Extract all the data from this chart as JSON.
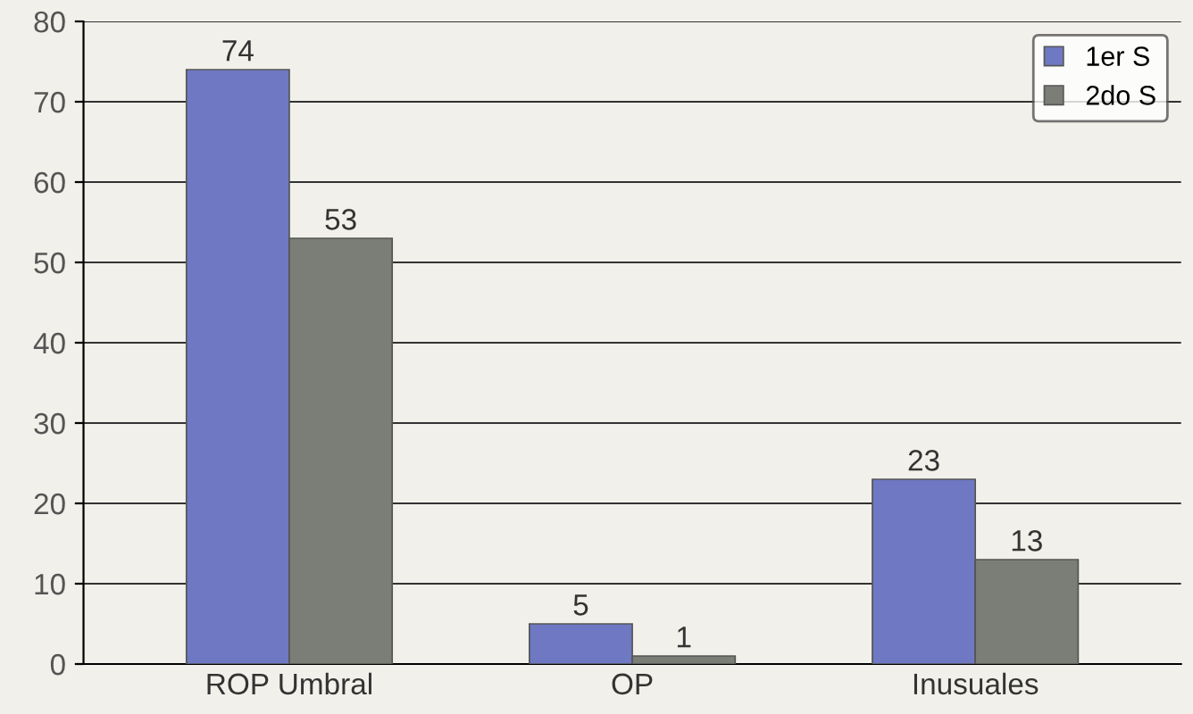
{
  "chart_data": {
    "type": "bar",
    "categories": [
      "ROP Umbral",
      "OP",
      "Inusuales"
    ],
    "series": [
      {
        "name": "1er S",
        "color": "#6f78c2",
        "values": [
          74,
          5,
          23
        ]
      },
      {
        "name": "2do S",
        "color": "#7b7e76",
        "values": [
          53,
          1,
          13
        ]
      }
    ],
    "ylim": [
      0,
      80
    ],
    "yticks": [
      0,
      10,
      20,
      30,
      40,
      50,
      60,
      70,
      80
    ],
    "grid": "y",
    "legend": "top right",
    "data_labels": true
  }
}
